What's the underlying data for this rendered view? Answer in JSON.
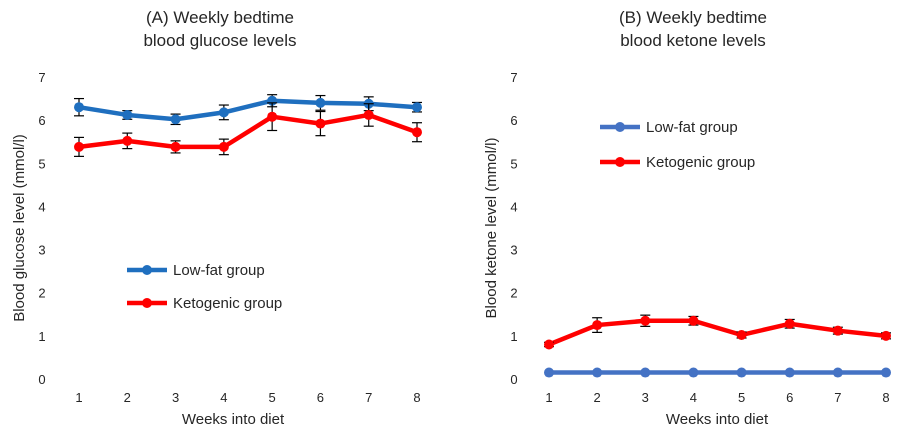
{
  "chart_data": [
    {
      "type": "line",
      "title_lines": [
        "(A) Weekly bedtime",
        "blood glucose levels"
      ],
      "xlabel": "Weeks into diet",
      "ylabel": "Blood glucose level  (mmol/l)",
      "x": [
        1,
        2,
        3,
        4,
        5,
        6,
        7,
        8
      ],
      "ylim": [
        0,
        7
      ],
      "yticks": [
        0,
        1,
        2,
        3,
        4,
        5,
        6,
        7
      ],
      "grid": false,
      "series": [
        {
          "name": "Low-fat group",
          "color": "#1f6fbf",
          "values": [
            6.3,
            6.12,
            6.02,
            6.18,
            6.45,
            6.4,
            6.38,
            6.3
          ],
          "errors": [
            0.2,
            0.1,
            0.12,
            0.17,
            0.14,
            0.17,
            0.16,
            0.11
          ]
        },
        {
          "name": "Ketogenic group",
          "color": "#ff0000",
          "values": [
            5.38,
            5.52,
            5.38,
            5.38,
            6.08,
            5.92,
            6.12,
            5.72
          ],
          "errors": [
            0.22,
            0.18,
            0.14,
            0.18,
            0.32,
            0.28,
            0.26,
            0.22
          ]
        }
      ],
      "legend": "middle-left"
    },
    {
      "type": "line",
      "title_lines": [
        "(B) Weekly bedtime",
        "blood ketone levels"
      ],
      "xlabel": "Weeks into diet",
      "ylabel": "Blood ketone level  (mmol/l)",
      "x": [
        1,
        2,
        3,
        4,
        5,
        6,
        7,
        8
      ],
      "ylim": [
        0,
        7
      ],
      "yticks": [
        0,
        1,
        2,
        3,
        4,
        5,
        6,
        7
      ],
      "grid": false,
      "series": [
        {
          "name": "Low-fat group",
          "color": "#4472c4",
          "values": [
            0.15,
            0.15,
            0.15,
            0.15,
            0.15,
            0.15,
            0.15,
            0.15
          ],
          "errors": [
            0,
            0,
            0,
            0,
            0,
            0,
            0,
            0
          ]
        },
        {
          "name": "Ketogenic group",
          "color": "#ff0000",
          "values": [
            0.8,
            1.25,
            1.35,
            1.35,
            1.02,
            1.28,
            1.12,
            1.0
          ],
          "errors": [
            0.05,
            0.17,
            0.13,
            0.1,
            0.07,
            0.1,
            0.08,
            0.07
          ]
        }
      ],
      "legend": "upper-left"
    }
  ]
}
